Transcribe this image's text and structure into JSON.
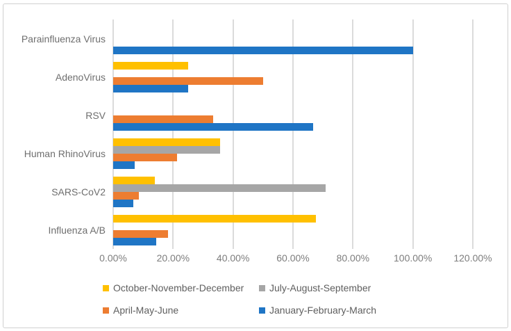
{
  "figure": {
    "background": "#ffffff",
    "border_color": "#d0d0d0"
  },
  "chart_data": {
    "type": "bar",
    "orientation": "horizontal",
    "title": "",
    "xlabel": "",
    "ylabel": "",
    "categories": [
      "Parainfluenza Virus",
      "AdenoVirus",
      "RSV",
      "Human RhinoVirus",
      "SARS-CoV2",
      "Influenza A/B"
    ],
    "series": [
      {
        "name": "October-November-December",
        "color": "#FFC000",
        "values": [
          0,
          25,
          0,
          35.7,
          13.8,
          67.6
        ]
      },
      {
        "name": "July-August-September",
        "color": "#A6A6A6",
        "values": [
          0,
          0,
          0,
          35.7,
          70.8,
          0
        ]
      },
      {
        "name": "April-May-June",
        "color": "#ED7D31",
        "values": [
          0,
          50,
          33.3,
          21.4,
          8.5,
          18.4
        ]
      },
      {
        "name": "January-February-March",
        "color": "#1F75C5",
        "values": [
          100,
          25,
          66.7,
          7.1,
          6.8,
          14.3
        ]
      }
    ],
    "x_axis": {
      "min": 0,
      "max": 120,
      "tick_step": 20,
      "tick_labels": [
        "0.00%",
        "20.00%",
        "40.00%",
        "60.00%",
        "80.00%",
        "100.00%",
        "120.00%"
      ],
      "unit": "percent"
    },
    "grid": {
      "vertical": true,
      "color": "#dbdbdb"
    },
    "legend": {
      "position": "bottom",
      "rows": [
        [
          "October-November-December",
          "July-August-September"
        ],
        [
          "April-May-June",
          "January-February-March"
        ]
      ]
    },
    "text_colors": {
      "category": "#6e6e6e",
      "axis": "#7d7d7d",
      "legend": "#5e5e5e"
    }
  }
}
